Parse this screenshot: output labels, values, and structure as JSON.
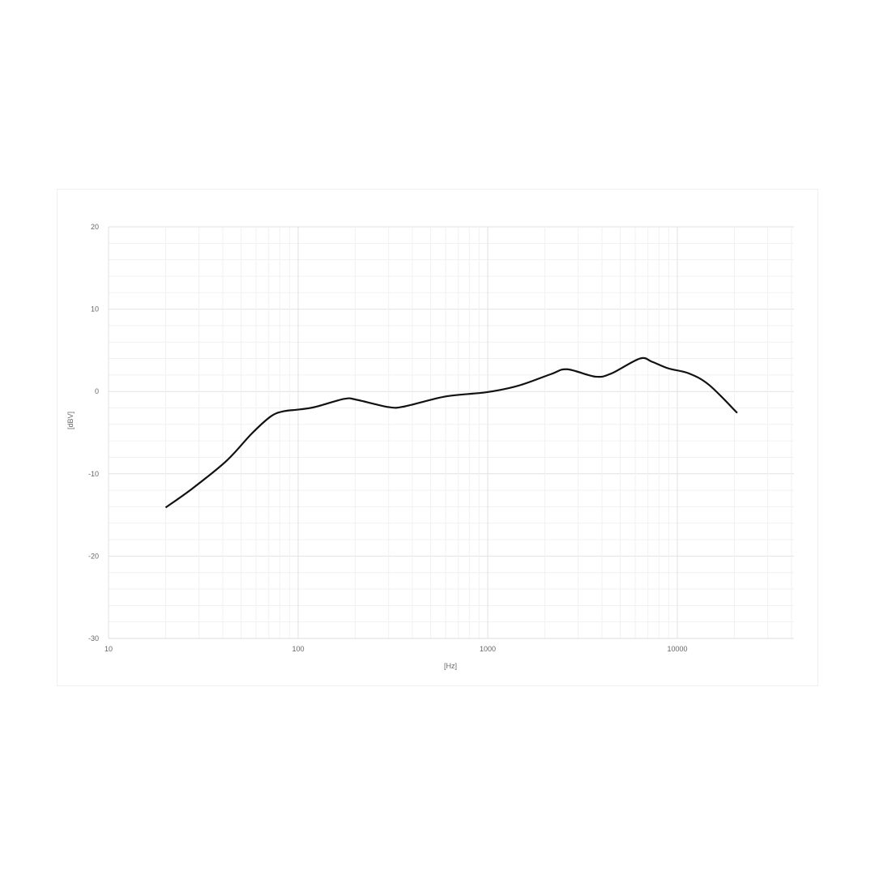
{
  "chart_data": {
    "type": "line",
    "title": "",
    "xlabel": "[Hz]",
    "ylabel": "[dBV]",
    "xscale": "log",
    "xlim": [
      10,
      40000
    ],
    "ylim": [
      -30,
      20
    ],
    "xticks": [
      "10",
      "100",
      "1000",
      "10000"
    ],
    "yticks": [
      "20",
      "10",
      "0",
      "-10",
      "-20",
      "-30"
    ],
    "grid": true,
    "line_color": "#111111",
    "series": [
      {
        "x": [
          20,
          28,
          42,
          57,
          72,
          84,
          100,
          122,
          175,
          203,
          301,
          367,
          600,
          980,
          1450,
          2150,
          2620,
          3700,
          4500,
          6350,
          7370,
          8980,
          11500,
          14700,
          20700
        ],
        "y": [
          -14.1,
          -11.7,
          -8.4,
          -5.1,
          -3.0,
          -2.4,
          -2.2,
          -1.9,
          -0.9,
          -1.0,
          -1.9,
          -1.8,
          -0.6,
          -0.1,
          0.7,
          2.1,
          2.7,
          1.8,
          2.2,
          4.0,
          3.6,
          2.8,
          2.2,
          0.8,
          -2.6
        ]
      }
    ]
  }
}
